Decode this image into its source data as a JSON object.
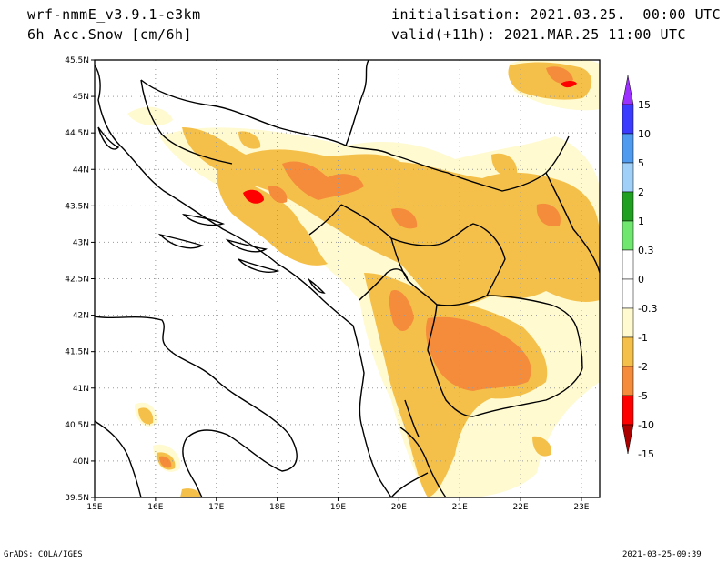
{
  "header": {
    "model": "wrf-nmmE_v3.9.1-e3km",
    "variable": "6h Acc.Snow [cm/6h]",
    "initialisation": "initialisation: 2021.03.25.  00:00 UTC",
    "valid": "valid(+11h): 2021.MAR.25 11:00 UTC"
  },
  "map": {
    "lon_labels": [
      "15E",
      "16E",
      "17E",
      "18E",
      "19E",
      "20E",
      "21E",
      "22E",
      "23E"
    ],
    "lat_labels": [
      "45.5N",
      "45N",
      "44.5N",
      "44N",
      "43.5N",
      "43N",
      "42.5N",
      "42N",
      "41.5N",
      "41N",
      "40.5N",
      "40N",
      "39.5N"
    ],
    "lon_range": [
      15,
      23.3
    ],
    "lat_range": [
      39.5,
      45.5
    ],
    "grid": "dotted"
  },
  "colorbar": {
    "labels": [
      "15",
      "10",
      "5",
      "2",
      "1",
      "0.3",
      "0",
      "-0.3",
      "-1",
      "-2",
      "-5",
      "-10",
      "-15"
    ],
    "colors": [
      "#9b30ff",
      "#3b3bff",
      "#4f9bf0",
      "#a0d0f8",
      "#20a020",
      "#70e870",
      "#ffffff",
      "#ffffff",
      "#fffad0",
      "#f5c04a",
      "#f58c3c",
      "#ff0000",
      "#aa0000"
    ]
  },
  "footer": {
    "left": "GrADS: COLA/IGES",
    "right": "2021-03-25-09:39"
  }
}
